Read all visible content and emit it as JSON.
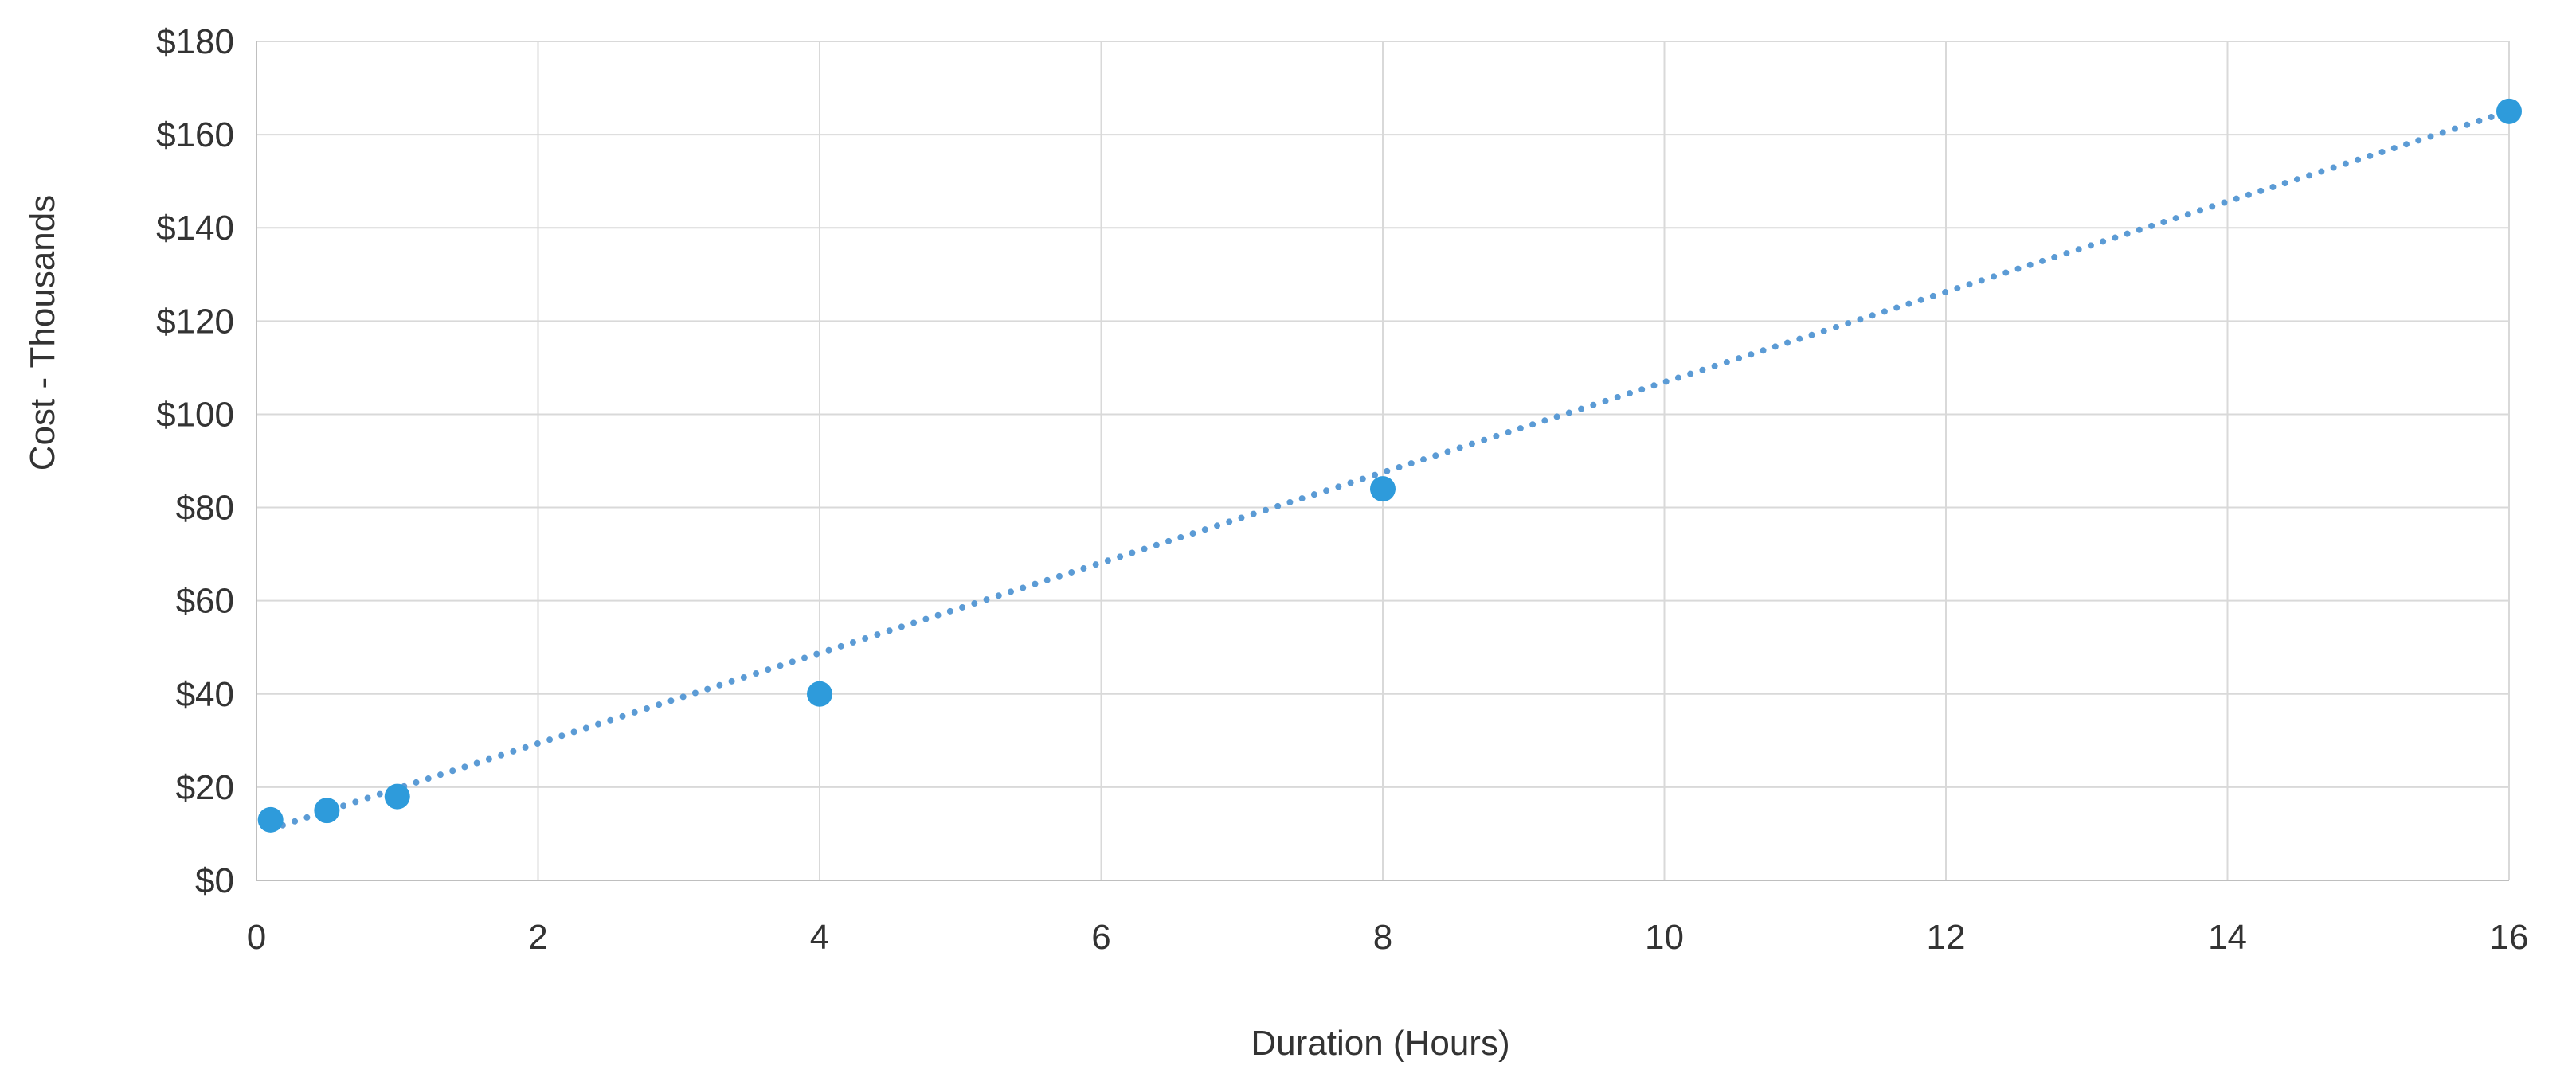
{
  "chart_data": {
    "type": "scatter",
    "title": "",
    "xlabel": "Duration (Hours)",
    "ylabel": "Cost - Thousands",
    "xlim": [
      0,
      16
    ],
    "ylim": [
      0,
      180
    ],
    "x_ticks": [
      0,
      2,
      4,
      6,
      8,
      10,
      12,
      14,
      16
    ],
    "x_tick_labels": [
      "0",
      "2",
      "4",
      "6",
      "8",
      "10",
      "12",
      "14",
      "16"
    ],
    "y_ticks": [
      0,
      20,
      40,
      60,
      80,
      100,
      120,
      140,
      160,
      180
    ],
    "y_tick_labels": [
      "$0",
      "$20",
      "$40",
      "$60",
      "$80",
      "$100",
      "$120",
      "$140",
      "$160",
      "$180"
    ],
    "grid": true,
    "legend": "none",
    "series": [
      {
        "points": [
          {
            "x": 0.1,
            "y": 13
          },
          {
            "x": 0.5,
            "y": 15
          },
          {
            "x": 1,
            "y": 18
          },
          {
            "x": 4,
            "y": 40
          },
          {
            "x": 8,
            "y": 84
          },
          {
            "x": 16,
            "y": 165
          }
        ],
        "color": "#2E9BDB"
      }
    ],
    "trendline": {
      "type": "linear",
      "style": "dotted",
      "color": "#5B9BD5",
      "points": [
        {
          "x": 0.1,
          "y": 11
        },
        {
          "x": 16,
          "y": 165
        }
      ]
    }
  },
  "colors": {
    "grid": "#D9D9D9",
    "axis": "#BFBFBF",
    "text": "#333333"
  }
}
